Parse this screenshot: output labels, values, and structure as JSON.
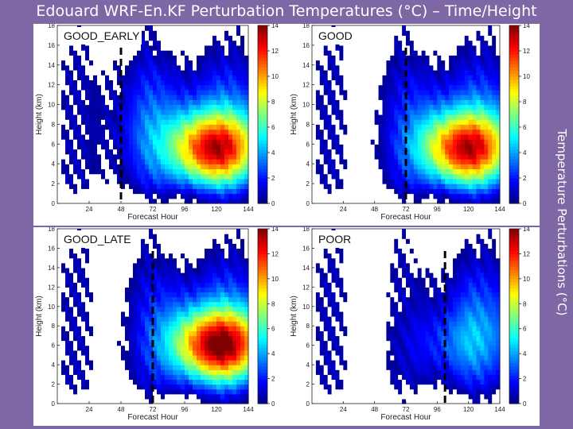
{
  "title": "Edouard WRF-En.KF Perturbation Temperatures (°C) – Time/Height",
  "side_label": "Temperature Perturbations (°C)",
  "colors": {
    "background": "#7e67a5",
    "colormap": [
      "#00007f",
      "#0000ff",
      "#007fff",
      "#00ffff",
      "#7fff7f",
      "#ffff00",
      "#ff7f00",
      "#ff0000",
      "#7f0000"
    ]
  },
  "chart_data": [
    {
      "type": "heatmap",
      "panel": "GOOD_EARLY",
      "xlabel": "Forecast Hour",
      "ylabel": "Height (km)",
      "xlim": [
        0,
        144
      ],
      "ylim": [
        0,
        18
      ],
      "xticks": [
        24,
        48,
        72,
        96,
        120,
        144
      ],
      "yticks": [
        0,
        2,
        4,
        6,
        8,
        10,
        12,
        14,
        16,
        18
      ],
      "colorbar": {
        "min": 0,
        "max": 14,
        "ticks": [
          0,
          2,
          4,
          6,
          8,
          10,
          12,
          14
        ]
      },
      "marker_hour": 48,
      "warm_core": {
        "hour": 118,
        "height_km": 5.5,
        "max_value": 11
      }
    },
    {
      "type": "heatmap",
      "panel": "GOOD",
      "xlabel": "Forecast Hour",
      "ylabel": "Height (km)",
      "xlim": [
        0,
        144
      ],
      "ylim": [
        0,
        18
      ],
      "xticks": [
        24,
        48,
        72,
        96,
        120,
        144
      ],
      "yticks": [
        0,
        2,
        4,
        6,
        8,
        10,
        12,
        14,
        16,
        18
      ],
      "colorbar": {
        "min": 0,
        "max": 14,
        "ticks": [
          0,
          2,
          4,
          6,
          8,
          10,
          12,
          14
        ]
      },
      "marker_hour": 72,
      "warm_core": {
        "hour": 118,
        "height_km": 5.5,
        "max_value": 11
      }
    },
    {
      "type": "heatmap",
      "panel": "GOOD_LATE",
      "xlabel": "Forecast Hour",
      "ylabel": "Height (km)",
      "xlim": [
        0,
        144
      ],
      "ylim": [
        0,
        18
      ],
      "xticks": [
        24,
        48,
        72,
        96,
        120,
        144
      ],
      "yticks": [
        0,
        2,
        4,
        6,
        8,
        10,
        12,
        14,
        16,
        18
      ],
      "colorbar": {
        "min": 0,
        "max": 14,
        "ticks": [
          0,
          2,
          4,
          6,
          8,
          10,
          12,
          14
        ]
      },
      "marker_hour": 72,
      "warm_core": {
        "hour": 122,
        "height_km": 6,
        "max_value": 12
      }
    },
    {
      "type": "heatmap",
      "panel": "POOR",
      "xlabel": "Forecast Hour",
      "ylabel": "Height (km)",
      "xlim": [
        0,
        144
      ],
      "ylim": [
        0,
        18
      ],
      "xticks": [
        24,
        48,
        72,
        96,
        120,
        144
      ],
      "yticks": [
        0,
        2,
        4,
        6,
        8,
        10,
        12,
        14,
        16,
        18
      ],
      "colorbar": {
        "min": 0,
        "max": 14,
        "ticks": [
          0,
          2,
          4,
          6,
          8,
          10,
          12,
          14
        ]
      },
      "marker_hour": 102,
      "warm_core": {
        "hour": 110,
        "height_km": 6,
        "max_value": 2
      }
    }
  ]
}
